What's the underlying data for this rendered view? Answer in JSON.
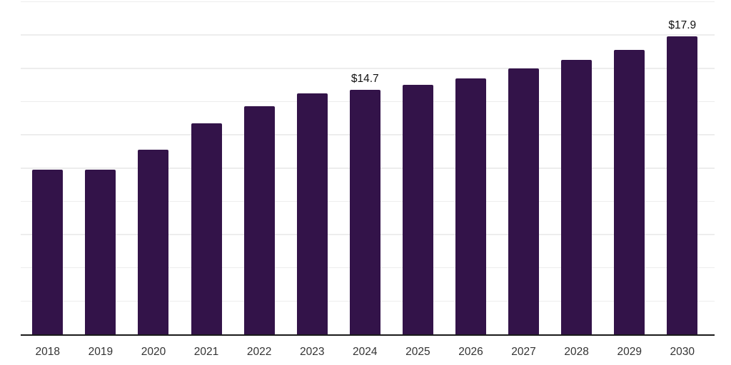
{
  "chart_data": {
    "type": "bar",
    "title": "",
    "xlabel": "",
    "ylabel": "",
    "categories": [
      "2018",
      "2019",
      "2020",
      "2021",
      "2022",
      "2023",
      "2024",
      "2025",
      "2026",
      "2027",
      "2028",
      "2029",
      "2030"
    ],
    "values": [
      9.9,
      9.9,
      11.1,
      12.7,
      13.7,
      14.5,
      14.7,
      15.0,
      15.4,
      16.0,
      16.5,
      17.1,
      17.9
    ],
    "data_labels": {
      "2024": "$14.7",
      "2030": "$17.9"
    },
    "ylim": [
      0,
      20
    ],
    "grid_step": 2,
    "grid": true,
    "legend": false,
    "colors": {
      "bar": "#331349",
      "gridline": "#ededed",
      "axis": "#1a1a1a",
      "tick_label": "#333333",
      "data_label": "#111111"
    }
  }
}
